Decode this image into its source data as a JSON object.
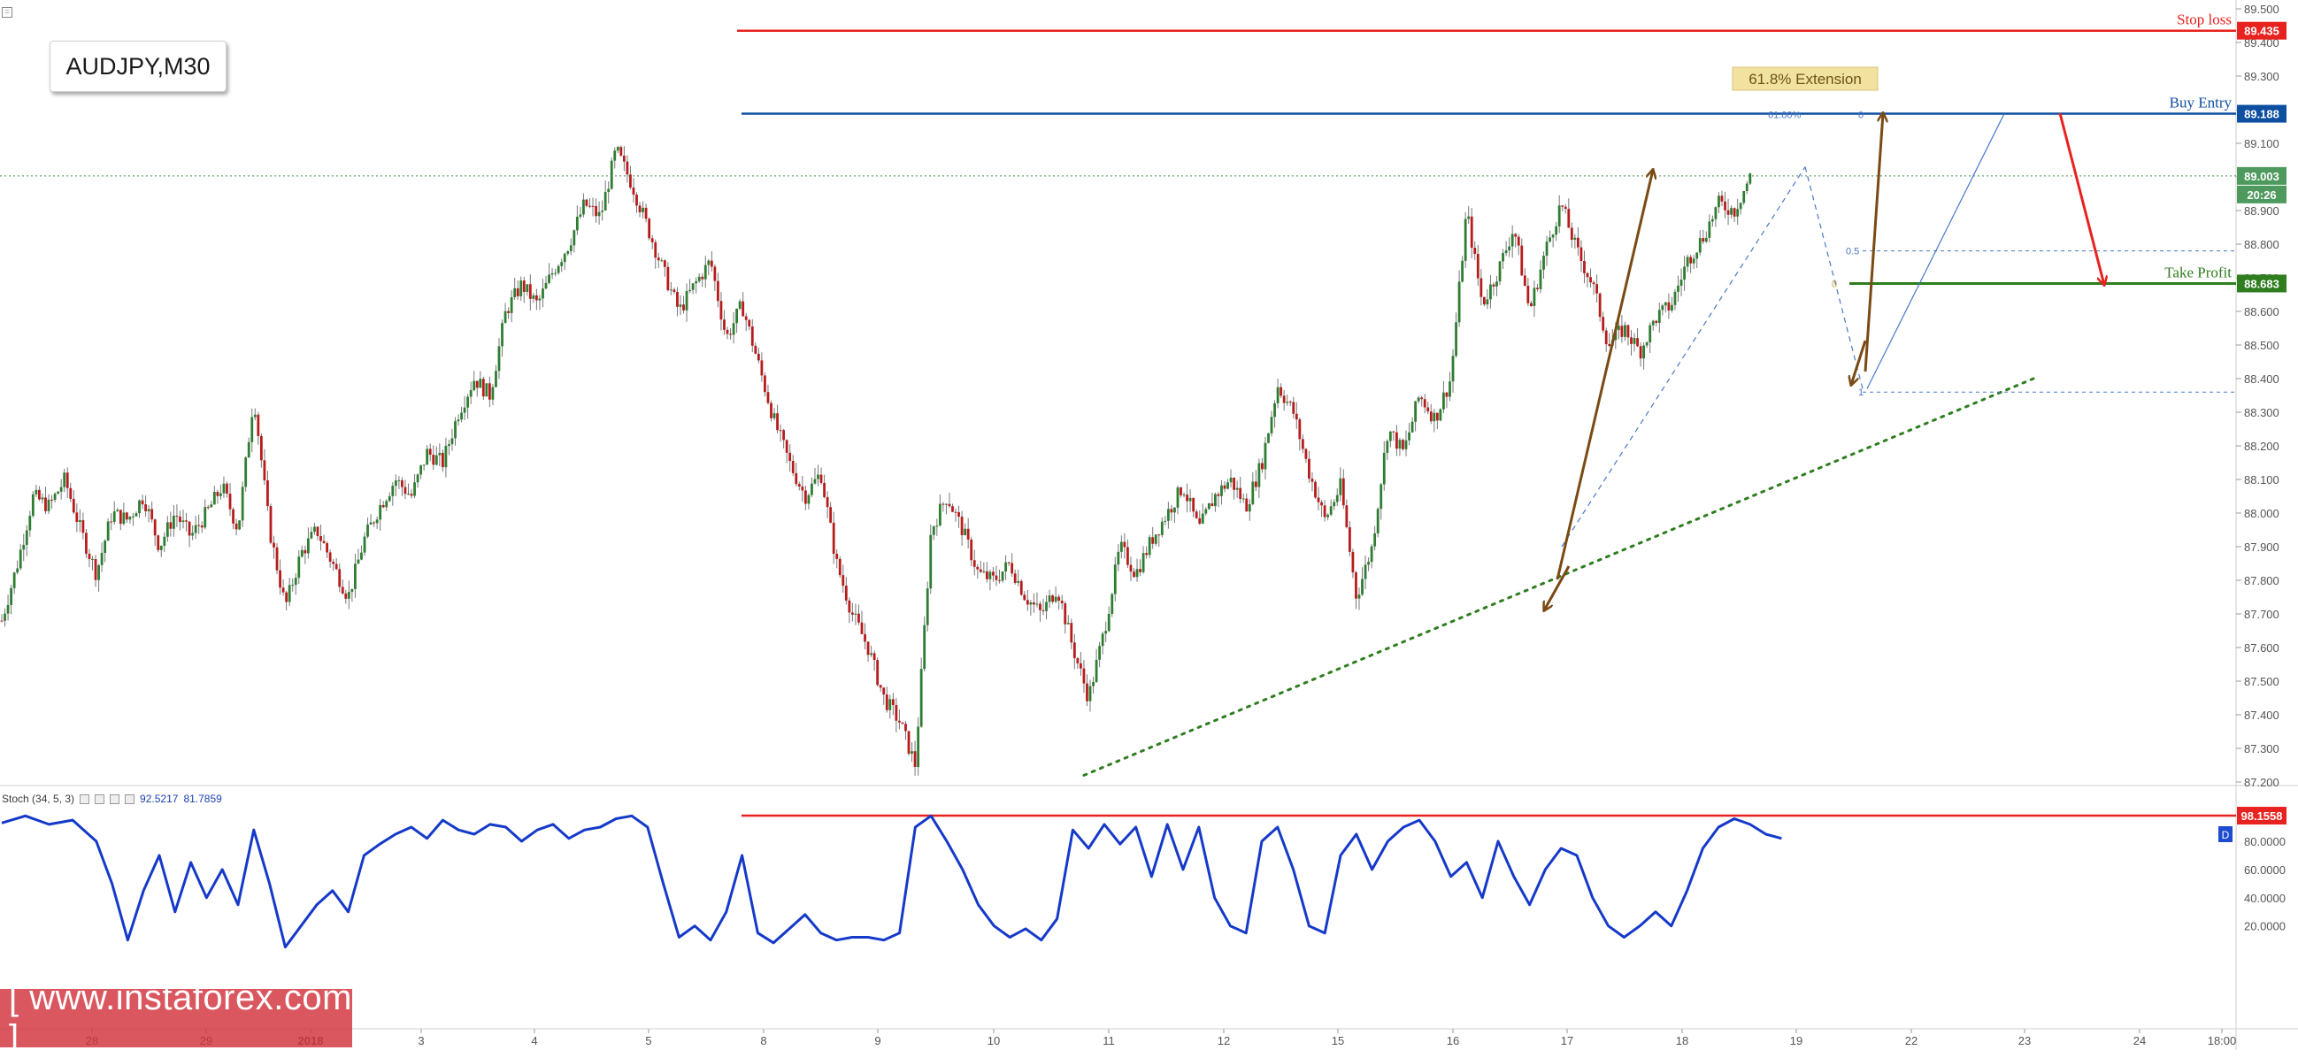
{
  "symbol": "AUDJPY,M30",
  "watermark": "[ www.instaforex.com ]",
  "stoch": {
    "label": "Stoch (34, 5, 3)",
    "value_k": "92.5217",
    "value_d": "81.7859",
    "badge": "D"
  },
  "colors": {
    "bull": "#2f7d32",
    "bear": "#b71c1c",
    "stop_loss": "#e8221e",
    "buy_entry": "#0d4fa0",
    "take_profit": "#2e7d1f",
    "stoch_line": "#1539c9",
    "arrow_brown": "#7a4a14",
    "arrow_red": "#e8221e"
  },
  "chart_data": {
    "type": "candlestick",
    "instrument": "AUDJPY",
    "timeframe": "M30",
    "price_axis": {
      "range": [
        87.15,
        89.55
      ],
      "ticks": [
        "89.500",
        "89.400",
        "89.300",
        "89.200",
        "89.100",
        "89.000",
        "88.900",
        "88.800",
        "88.700",
        "88.600",
        "88.500",
        "88.400",
        "88.300",
        "88.200",
        "88.100",
        "88.000",
        "87.900",
        "87.800",
        "87.700",
        "87.600",
        "87.500",
        "87.400",
        "87.300",
        "87.200"
      ]
    },
    "time_axis": {
      "labels": [
        "28",
        "29",
        "2018",
        "3",
        "4",
        "5",
        "8",
        "9",
        "10",
        "11",
        "12",
        "15",
        "16",
        "17",
        "18",
        "19",
        "22",
        "23",
        "24",
        "18:00"
      ]
    },
    "close_path": [
      [
        0,
        87.68
      ],
      [
        2,
        87.85
      ],
      [
        4,
        88.05
      ],
      [
        6,
        88.02
      ],
      [
        8,
        88.1
      ],
      [
        10,
        87.95
      ],
      [
        12,
        87.82
      ],
      [
        14,
        88.0
      ],
      [
        16,
        87.98
      ],
      [
        18,
        88.05
      ],
      [
        20,
        87.9
      ],
      [
        22,
        88.0
      ],
      [
        24,
        87.93
      ],
      [
        26,
        88.0
      ],
      [
        28,
        88.08
      ],
      [
        30,
        87.95
      ],
      [
        32,
        88.35
      ],
      [
        34,
        87.95
      ],
      [
        36,
        87.72
      ],
      [
        38,
        87.88
      ],
      [
        40,
        87.95
      ],
      [
        42,
        87.85
      ],
      [
        44,
        87.75
      ],
      [
        46,
        87.92
      ],
      [
        48,
        88.02
      ],
      [
        50,
        88.1
      ],
      [
        52,
        88.05
      ],
      [
        54,
        88.18
      ],
      [
        56,
        88.15
      ],
      [
        58,
        88.3
      ],
      [
        60,
        88.4
      ],
      [
        62,
        88.35
      ],
      [
        64,
        88.6
      ],
      [
        66,
        88.68
      ],
      [
        68,
        88.62
      ],
      [
        70,
        88.72
      ],
      [
        72,
        88.8
      ],
      [
        74,
        88.92
      ],
      [
        76,
        88.88
      ],
      [
        78,
        89.08
      ],
      [
        80,
        88.98
      ],
      [
        82,
        88.85
      ],
      [
        84,
        88.72
      ],
      [
        86,
        88.6
      ],
      [
        88,
        88.68
      ],
      [
        90,
        88.75
      ],
      [
        92,
        88.52
      ],
      [
        94,
        88.62
      ],
      [
        96,
        88.45
      ],
      [
        98,
        88.28
      ],
      [
        100,
        88.15
      ],
      [
        102,
        88.05
      ],
      [
        104,
        88.12
      ],
      [
        106,
        87.85
      ],
      [
        108,
        87.7
      ],
      [
        110,
        87.6
      ],
      [
        112,
        87.45
      ],
      [
        114,
        87.38
      ],
      [
        116,
        87.25
      ],
      [
        118,
        87.95
      ],
      [
        120,
        88.05
      ],
      [
        122,
        87.95
      ],
      [
        124,
        87.82
      ],
      [
        126,
        87.8
      ],
      [
        128,
        87.85
      ],
      [
        130,
        87.75
      ],
      [
        132,
        87.7
      ],
      [
        134,
        87.78
      ],
      [
        136,
        87.6
      ],
      [
        138,
        87.45
      ],
      [
        140,
        87.65
      ],
      [
        142,
        87.9
      ],
      [
        144,
        87.82
      ],
      [
        146,
        87.92
      ],
      [
        148,
        88.0
      ],
      [
        150,
        88.08
      ],
      [
        152,
        87.95
      ],
      [
        154,
        88.05
      ],
      [
        156,
        88.1
      ],
      [
        158,
        88.02
      ],
      [
        160,
        88.15
      ],
      [
        162,
        88.38
      ],
      [
        164,
        88.3
      ],
      [
        166,
        88.12
      ],
      [
        168,
        87.98
      ],
      [
        170,
        88.08
      ],
      [
        172,
        87.75
      ],
      [
        174,
        87.9
      ],
      [
        176,
        88.25
      ],
      [
        178,
        88.18
      ],
      [
        180,
        88.35
      ],
      [
        182,
        88.28
      ],
      [
        184,
        88.4
      ],
      [
        186,
        88.9
      ],
      [
        188,
        88.62
      ],
      [
        190,
        88.72
      ],
      [
        192,
        88.85
      ],
      [
        194,
        88.6
      ],
      [
        196,
        88.78
      ],
      [
        198,
        88.92
      ],
      [
        200,
        88.78
      ],
      [
        202,
        88.68
      ],
      [
        204,
        88.5
      ],
      [
        206,
        88.55
      ],
      [
        208,
        88.48
      ],
      [
        210,
        88.58
      ],
      [
        212,
        88.62
      ],
      [
        214,
        88.75
      ],
      [
        216,
        88.82
      ],
      [
        218,
        88.92
      ],
      [
        220,
        88.9
      ],
      [
        222,
        89.0
      ]
    ],
    "levels": [
      {
        "name": "Stop loss",
        "price": 89.435
      },
      {
        "name": "Buy Entry",
        "price": 89.188
      },
      {
        "name": "Take Profit",
        "price": 88.683
      },
      {
        "name": "current",
        "price": 89.003,
        "countdown": "20:26"
      }
    ],
    "annotations": {
      "extension_label": "61.8% Extension",
      "fib_labels": [
        "61.80%",
        "0",
        "0.5",
        "0",
        "1"
      ]
    },
    "stochastic": {
      "params": [
        34,
        5,
        3
      ],
      "range": [
        0,
        100
      ],
      "ticks": [
        "80.0000",
        "60.0000",
        "40.0000",
        "20.0000"
      ],
      "level_line": "98.1558",
      "k_path": [
        [
          0,
          93
        ],
        [
          3,
          98
        ],
        [
          6,
          92
        ],
        [
          9,
          95
        ],
        [
          12,
          80
        ],
        [
          14,
          50
        ],
        [
          16,
          10
        ],
        [
          18,
          45
        ],
        [
          20,
          70
        ],
        [
          22,
          30
        ],
        [
          24,
          65
        ],
        [
          26,
          40
        ],
        [
          28,
          60
        ],
        [
          30,
          35
        ],
        [
          32,
          88
        ],
        [
          34,
          50
        ],
        [
          36,
          5
        ],
        [
          38,
          20
        ],
        [
          40,
          35
        ],
        [
          42,
          45
        ],
        [
          44,
          30
        ],
        [
          46,
          70
        ],
        [
          48,
          78
        ],
        [
          50,
          85
        ],
        [
          52,
          90
        ],
        [
          54,
          82
        ],
        [
          56,
          95
        ],
        [
          58,
          88
        ],
        [
          60,
          85
        ],
        [
          62,
          92
        ],
        [
          64,
          90
        ],
        [
          66,
          80
        ],
        [
          68,
          88
        ],
        [
          70,
          92
        ],
        [
          72,
          82
        ],
        [
          74,
          88
        ],
        [
          76,
          90
        ],
        [
          78,
          96
        ],
        [
          80,
          98
        ],
        [
          82,
          90
        ],
        [
          84,
          50
        ],
        [
          86,
          12
        ],
        [
          88,
          20
        ],
        [
          90,
          10
        ],
        [
          92,
          30
        ],
        [
          94,
          70
        ],
        [
          96,
          15
        ],
        [
          98,
          8
        ],
        [
          100,
          18
        ],
        [
          102,
          28
        ],
        [
          104,
          15
        ],
        [
          106,
          10
        ],
        [
          108,
          12
        ],
        [
          110,
          12
        ],
        [
          112,
          10
        ],
        [
          114,
          15
        ],
        [
          116,
          90
        ],
        [
          118,
          98
        ],
        [
          120,
          80
        ],
        [
          122,
          60
        ],
        [
          124,
          35
        ],
        [
          126,
          20
        ],
        [
          128,
          12
        ],
        [
          130,
          18
        ],
        [
          132,
          10
        ],
        [
          134,
          25
        ],
        [
          136,
          88
        ],
        [
          138,
          75
        ],
        [
          140,
          92
        ],
        [
          142,
          78
        ],
        [
          144,
          90
        ],
        [
          146,
          55
        ],
        [
          148,
          92
        ],
        [
          150,
          60
        ],
        [
          152,
          90
        ],
        [
          154,
          40
        ],
        [
          156,
          20
        ],
        [
          158,
          15
        ],
        [
          160,
          80
        ],
        [
          162,
          90
        ],
        [
          164,
          60
        ],
        [
          166,
          20
        ],
        [
          168,
          15
        ],
        [
          170,
          70
        ],
        [
          172,
          85
        ],
        [
          174,
          60
        ],
        [
          176,
          80
        ],
        [
          178,
          90
        ],
        [
          180,
          95
        ],
        [
          182,
          80
        ],
        [
          184,
          55
        ],
        [
          186,
          65
        ],
        [
          188,
          40
        ],
        [
          190,
          80
        ],
        [
          192,
          55
        ],
        [
          194,
          35
        ],
        [
          196,
          60
        ],
        [
          198,
          75
        ],
        [
          200,
          70
        ],
        [
          202,
          40
        ],
        [
          204,
          20
        ],
        [
          206,
          12
        ],
        [
          208,
          20
        ],
        [
          210,
          30
        ],
        [
          212,
          20
        ],
        [
          214,
          45
        ],
        [
          216,
          75
        ],
        [
          218,
          90
        ],
        [
          220,
          96
        ],
        [
          222,
          92
        ],
        [
          224,
          85
        ],
        [
          226,
          82
        ]
      ]
    },
    "price_tags": {
      "stop_loss": "89.435",
      "buy_entry": "89.188",
      "current": "89.003",
      "countdown": "20:26",
      "take_profit": "88.683",
      "stoch_level": "98.1558"
    }
  }
}
